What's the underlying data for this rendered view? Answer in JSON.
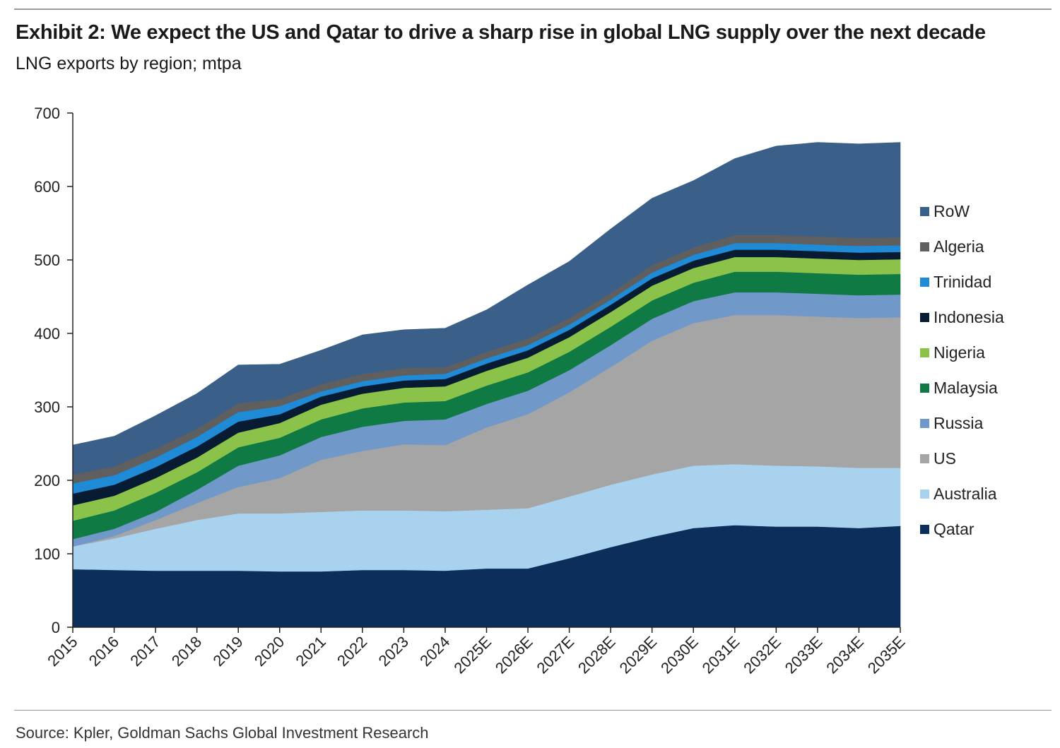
{
  "header": {
    "title": "Exhibit 2: We expect the US and Qatar to drive a sharp rise in global LNG supply over the next decade",
    "subtitle": "LNG exports by region; mtpa"
  },
  "footer": {
    "source": "Source: Kpler, Goldman Sachs Global Investment Research"
  },
  "chart_data": {
    "type": "area",
    "stacked": true,
    "x": [
      "2015",
      "2016",
      "2017",
      "2018",
      "2019",
      "2020",
      "2021",
      "2022",
      "2023",
      "2024",
      "2025E",
      "2026E",
      "2027E",
      "2028E",
      "2029E",
      "2030E",
      "2031E",
      "2032E",
      "2033E",
      "2034E",
      "2035E"
    ],
    "ylim": [
      0,
      700
    ],
    "yticks": [
      0,
      100,
      200,
      300,
      400,
      500,
      600,
      700
    ],
    "xlabel": "",
    "ylabel": "",
    "legend_position": "right",
    "grid": false,
    "series": [
      {
        "name": "Qatar",
        "color": "#0b2f5a",
        "values": [
          79,
          78,
          77,
          77,
          77,
          76,
          76,
          78,
          78,
          77,
          80,
          80,
          94,
          109,
          123,
          135,
          139,
          137,
          137,
          135,
          138
        ]
      },
      {
        "name": "Australia",
        "color": "#a9d2ef",
        "values": [
          31,
          43,
          57,
          69,
          78,
          79,
          81,
          81,
          81,
          81,
          80,
          82,
          84,
          85,
          85,
          85,
          83,
          83,
          82,
          82,
          79
        ]
      },
      {
        "name": "US",
        "color": "#a5a5a5",
        "values": [
          0,
          3,
          12,
          23,
          36,
          48,
          71,
          81,
          90,
          90,
          112,
          128,
          142,
          160,
          182,
          194,
          203,
          205,
          204,
          204,
          205
        ]
      },
      {
        "name": "Russia",
        "color": "#7098c8",
        "values": [
          10,
          10,
          11,
          18,
          29,
          31,
          31,
          33,
          32,
          35,
          32,
          32,
          30,
          30,
          30,
          30,
          31,
          31,
          31,
          31,
          31
        ]
      },
      {
        "name": "Malaysia",
        "color": "#0f7a43",
        "values": [
          25,
          25,
          26,
          24,
          25,
          24,
          24,
          25,
          25,
          25,
          25,
          25,
          25,
          25,
          25,
          25,
          28,
          28,
          28,
          28,
          28
        ]
      },
      {
        "name": "Nigeria",
        "color": "#8bc34a",
        "values": [
          21,
          20,
          20,
          20,
          20,
          20,
          20,
          20,
          20,
          20,
          20,
          20,
          20,
          20,
          20,
          20,
          20,
          20,
          20,
          20,
          20
        ]
      },
      {
        "name": "Indonesia",
        "color": "#071c33",
        "values": [
          16,
          15,
          15,
          15,
          15,
          12,
          11,
          10,
          10,
          10,
          10,
          10,
          10,
          10,
          10,
          10,
          10,
          10,
          10,
          10,
          10
        ]
      },
      {
        "name": "Trinidad",
        "color": "#1f8ad6",
        "values": [
          14,
          13,
          13,
          13,
          13,
          11,
          7,
          7,
          7,
          7,
          7,
          7,
          7,
          7,
          8,
          8,
          9,
          9,
          9,
          9,
          9
        ]
      },
      {
        "name": "Algeria",
        "color": "#5f5f5f",
        "values": [
          12,
          12,
          12,
          11,
          12,
          10,
          10,
          10,
          10,
          9,
          9,
          9,
          9,
          9,
          10,
          10,
          11,
          11,
          11,
          11,
          11
        ]
      },
      {
        "name": "RoW",
        "color": "#3a5f88",
        "values": [
          40,
          41,
          45,
          48,
          52,
          47,
          46,
          53,
          52,
          53,
          57,
          73,
          77,
          87,
          91,
          91,
          104,
          121,
          128,
          128,
          129
        ]
      }
    ]
  }
}
